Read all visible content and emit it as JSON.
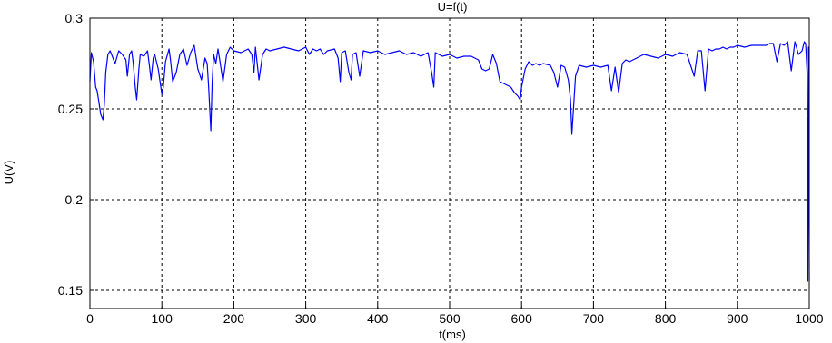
{
  "chart_data": {
    "type": "line",
    "title": "U=f(t)",
    "xlabel": "t(ms)",
    "ylabel": "U(V)",
    "xlim": [
      0,
      1000
    ],
    "ylim": [
      0.14,
      0.3
    ],
    "x_ticks": [
      0,
      100,
      200,
      300,
      400,
      500,
      600,
      700,
      800,
      900,
      1000
    ],
    "y_ticks": [
      0.15,
      0.2,
      0.25,
      0.3
    ],
    "x_tick_labels": [
      "0",
      "100",
      "200",
      "300",
      "400",
      "500",
      "600",
      "700",
      "800",
      "900",
      "1000"
    ],
    "y_tick_labels": [
      "0.15",
      "0.2",
      "0.25",
      "0.3"
    ],
    "grid": true,
    "grid_style": "dashed",
    "line_color": "#0000ff",
    "series": [
      {
        "x": [
          0,
          2,
          5,
          8,
          10,
          12,
          15,
          18,
          20,
          22,
          25,
          28,
          30,
          35,
          40,
          45,
          50,
          52,
          55,
          58,
          60,
          63,
          65,
          68,
          70,
          75,
          80,
          83,
          85,
          88,
          90,
          95,
          100,
          102,
          105,
          110,
          112,
          115,
          120,
          125,
          130,
          135,
          140,
          145,
          150,
          155,
          160,
          163,
          165,
          168,
          170,
          172,
          175,
          178,
          180,
          185,
          190,
          195,
          200,
          210,
          220,
          225,
          228,
          230,
          235,
          240,
          245,
          250,
          260,
          270,
          280,
          290,
          300,
          305,
          310,
          315,
          320,
          325,
          330,
          340,
          345,
          348,
          350,
          355,
          360,
          363,
          365,
          370,
          375,
          380,
          390,
          400,
          410,
          420,
          430,
          440,
          450,
          460,
          470,
          475,
          478,
          480,
          485,
          490,
          500,
          510,
          520,
          530,
          540,
          545,
          550,
          555,
          560,
          565,
          570,
          575,
          580,
          585,
          590,
          595,
          598,
          600,
          605,
          610,
          615,
          620,
          625,
          630,
          640,
          645,
          650,
          655,
          660,
          665,
          668,
          670,
          675,
          680,
          690,
          700,
          710,
          720,
          725,
          730,
          735,
          740,
          745,
          750,
          760,
          770,
          780,
          790,
          800,
          810,
          820,
          830,
          840,
          845,
          850,
          855,
          860,
          865,
          870,
          875,
          880,
          885,
          890,
          895,
          900,
          910,
          920,
          930,
          940,
          945,
          950,
          955,
          960,
          965,
          970,
          975,
          980,
          985,
          990,
          993,
          995,
          997,
          998,
          999,
          1000
        ],
        "y": [
          0.265,
          0.281,
          0.276,
          0.262,
          0.26,
          0.255,
          0.247,
          0.244,
          0.252,
          0.27,
          0.28,
          0.282,
          0.28,
          0.275,
          0.282,
          0.28,
          0.277,
          0.268,
          0.28,
          0.282,
          0.276,
          0.262,
          0.255,
          0.272,
          0.28,
          0.279,
          0.282,
          0.273,
          0.266,
          0.278,
          0.28,
          0.272,
          0.258,
          0.262,
          0.276,
          0.283,
          0.277,
          0.265,
          0.27,
          0.28,
          0.283,
          0.274,
          0.281,
          0.285,
          0.272,
          0.266,
          0.278,
          0.275,
          0.262,
          0.238,
          0.265,
          0.28,
          0.275,
          0.283,
          0.278,
          0.265,
          0.28,
          0.284,
          0.282,
          0.281,
          0.283,
          0.28,
          0.27,
          0.284,
          0.266,
          0.28,
          0.283,
          0.282,
          0.283,
          0.284,
          0.283,
          0.282,
          0.284,
          0.28,
          0.283,
          0.282,
          0.283,
          0.28,
          0.282,
          0.283,
          0.278,
          0.265,
          0.281,
          0.282,
          0.27,
          0.266,
          0.28,
          0.281,
          0.268,
          0.282,
          0.281,
          0.282,
          0.28,
          0.281,
          0.282,
          0.28,
          0.281,
          0.279,
          0.281,
          0.27,
          0.262,
          0.281,
          0.28,
          0.279,
          0.28,
          0.278,
          0.279,
          0.279,
          0.277,
          0.272,
          0.271,
          0.272,
          0.28,
          0.275,
          0.265,
          0.264,
          0.263,
          0.262,
          0.259,
          0.257,
          0.255,
          0.262,
          0.272,
          0.276,
          0.274,
          0.275,
          0.274,
          0.275,
          0.274,
          0.27,
          0.262,
          0.274,
          0.273,
          0.266,
          0.255,
          0.236,
          0.268,
          0.274,
          0.273,
          0.274,
          0.273,
          0.274,
          0.26,
          0.273,
          0.259,
          0.275,
          0.277,
          0.276,
          0.278,
          0.28,
          0.279,
          0.278,
          0.28,
          0.279,
          0.281,
          0.28,
          0.268,
          0.282,
          0.282,
          0.26,
          0.283,
          0.282,
          0.283,
          0.283,
          0.284,
          0.283,
          0.284,
          0.284,
          0.285,
          0.284,
          0.285,
          0.285,
          0.285,
          0.286,
          0.286,
          0.276,
          0.286,
          0.285,
          0.287,
          0.271,
          0.287,
          0.28,
          0.282,
          0.287,
          0.286,
          0.27,
          0.155,
          0.284,
          0.155
        ]
      }
    ]
  }
}
